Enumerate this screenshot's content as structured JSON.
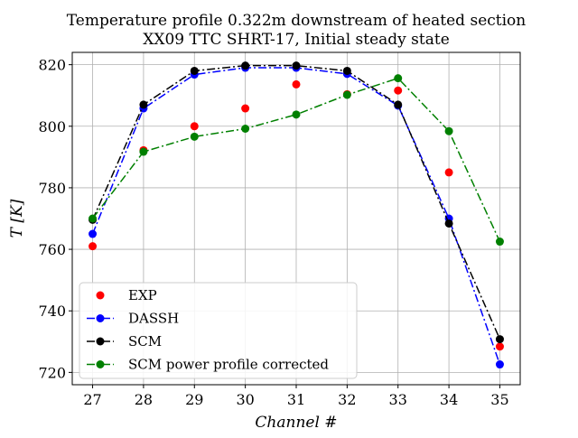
{
  "chart_data": {
    "type": "line",
    "title": "Temperature profile 0.322m downstream of heated section",
    "subtitle": "XX09 TTC SHRT-17, Initial steady state",
    "xlabel": "Channel #",
    "ylabel": "T [K]",
    "x": [
      27,
      28,
      29,
      30,
      31,
      32,
      33,
      34,
      35
    ],
    "xlim": [
      26.6,
      35.4
    ],
    "ylim": [
      716,
      824
    ],
    "xticks": [
      27,
      28,
      29,
      30,
      31,
      32,
      33,
      34,
      35
    ],
    "yticks": [
      720,
      740,
      760,
      780,
      800,
      820
    ],
    "grid": true,
    "legend_position": "lower-left",
    "series": [
      {
        "name": "EXP",
        "color": "#ff0000",
        "style": "markers",
        "values": [
          761,
          792.2,
          800,
          805.8,
          813.6,
          810.4,
          811.6,
          785,
          728.4
        ]
      },
      {
        "name": "DASSH",
        "color": "#0000ff",
        "style": "dash-dot",
        "values": [
          765,
          805.8,
          816.8,
          819,
          819,
          817,
          806.7,
          770,
          722.6
        ]
      },
      {
        "name": "SCM",
        "color": "#000000",
        "style": "dash-dot",
        "values": [
          769.6,
          807,
          818,
          819.7,
          819.7,
          818,
          807,
          768.4,
          730.8
        ]
      },
      {
        "name": "SCM power profile corrected",
        "color": "#008000",
        "style": "dash-dot",
        "values": [
          770,
          791.7,
          796.6,
          799.2,
          803.8,
          810.2,
          815.6,
          798.4,
          762.5
        ]
      }
    ]
  }
}
